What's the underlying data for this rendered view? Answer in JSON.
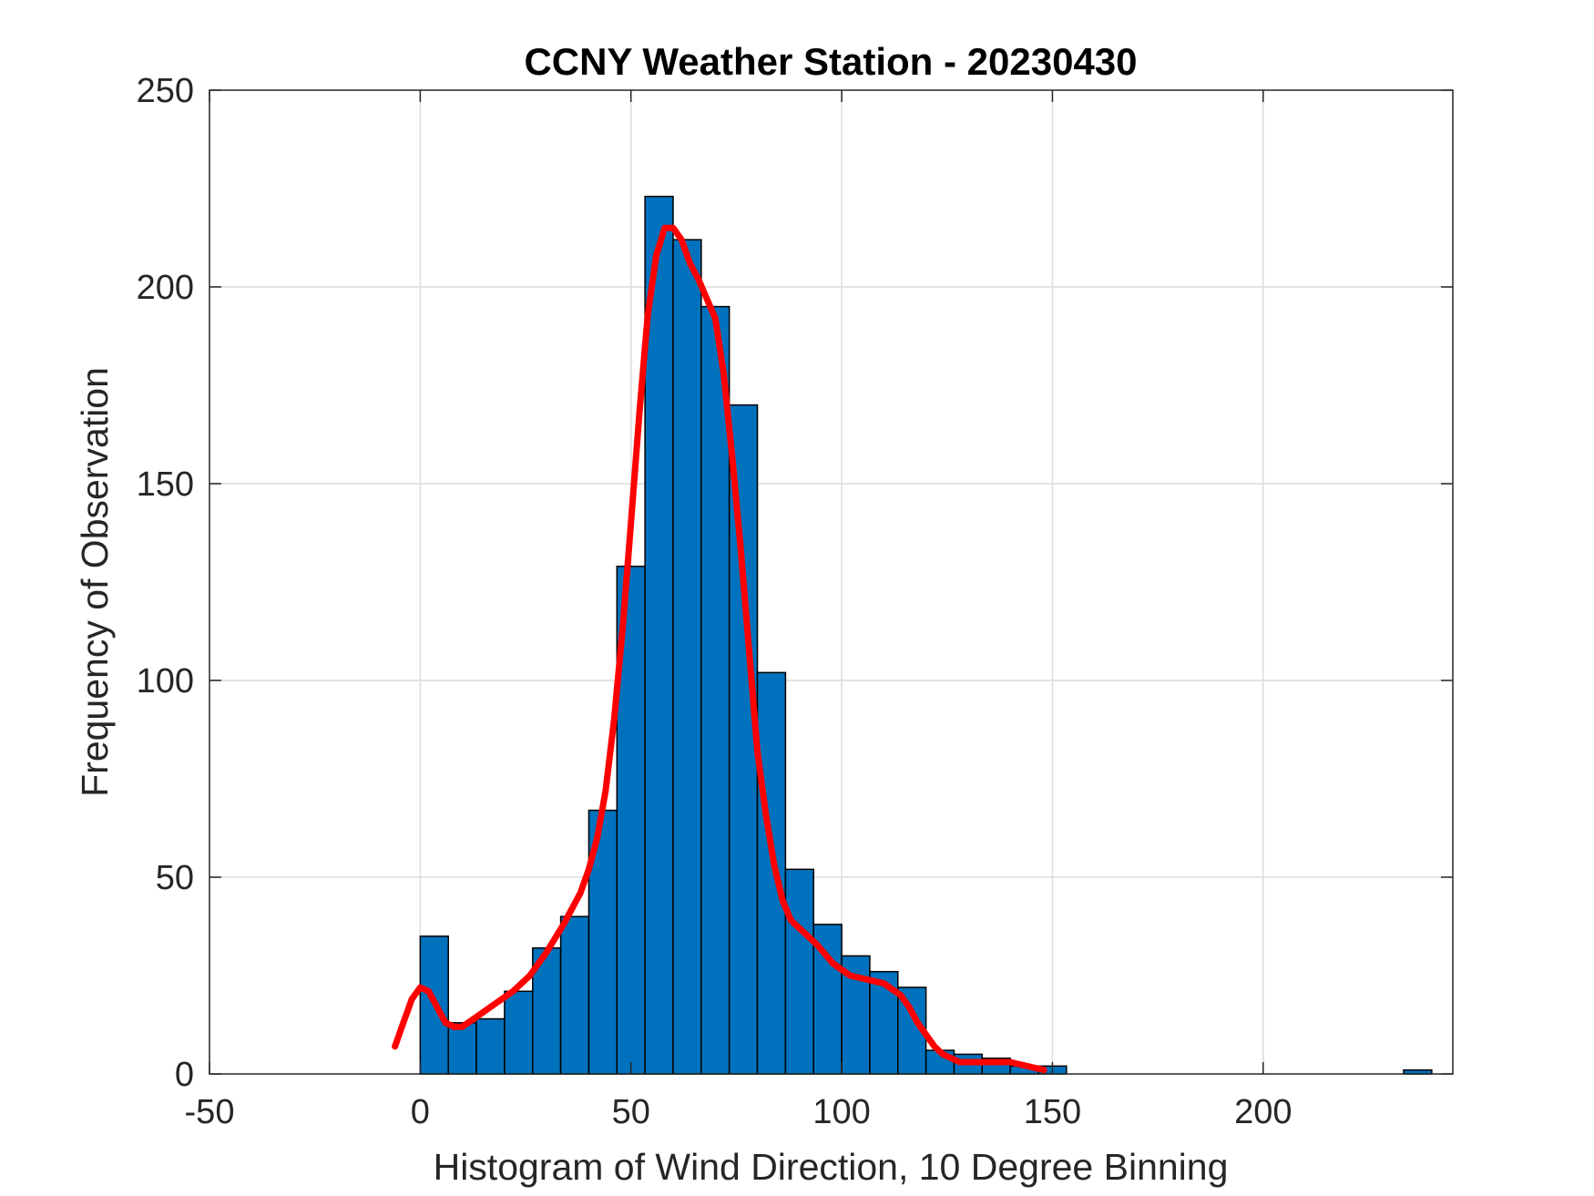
{
  "chart_data": {
    "type": "bar",
    "title": "CCNY Weather Station - 20230430",
    "xlabel": "Histogram of Wind Direction, 10 Degree Binning",
    "ylabel": "Frequency of Observation",
    "xlim": [
      -50,
      245
    ],
    "ylim": [
      0,
      250
    ],
    "xticks": [
      -50,
      0,
      50,
      100,
      150,
      200
    ],
    "yticks": [
      0,
      50,
      100,
      150,
      200,
      250
    ],
    "grid": true,
    "bar_color": "#0072BD",
    "bar_edge_color": "#000000",
    "curve_color": "#FF0000",
    "bins": [
      {
        "x0": 0,
        "x1": 6.67,
        "value": 35
      },
      {
        "x0": 6.67,
        "x1": 13.33,
        "value": 13
      },
      {
        "x0": 13.33,
        "x1": 20,
        "value": 14
      },
      {
        "x0": 20,
        "x1": 26.67,
        "value": 21
      },
      {
        "x0": 26.67,
        "x1": 33.33,
        "value": 32
      },
      {
        "x0": 33.33,
        "x1": 40,
        "value": 40
      },
      {
        "x0": 40,
        "x1": 46.67,
        "value": 67
      },
      {
        "x0": 46.67,
        "x1": 53.33,
        "value": 129
      },
      {
        "x0": 53.33,
        "x1": 60,
        "value": 223
      },
      {
        "x0": 60,
        "x1": 66.67,
        "value": 212
      },
      {
        "x0": 66.67,
        "x1": 73.33,
        "value": 195
      },
      {
        "x0": 73.33,
        "x1": 80,
        "value": 170
      },
      {
        "x0": 80,
        "x1": 86.67,
        "value": 102
      },
      {
        "x0": 86.67,
        "x1": 93.33,
        "value": 52
      },
      {
        "x0": 93.33,
        "x1": 100,
        "value": 38
      },
      {
        "x0": 100,
        "x1": 106.67,
        "value": 30
      },
      {
        "x0": 106.67,
        "x1": 113.33,
        "value": 26
      },
      {
        "x0": 113.33,
        "x1": 120,
        "value": 22
      },
      {
        "x0": 120,
        "x1": 126.67,
        "value": 6
      },
      {
        "x0": 126.67,
        "x1": 133.33,
        "value": 5
      },
      {
        "x0": 133.33,
        "x1": 140,
        "value": 4
      },
      {
        "x0": 140,
        "x1": 146.67,
        "value": 2
      },
      {
        "x0": 146.67,
        "x1": 153.33,
        "value": 2
      },
      {
        "x0": 153.33,
        "x1": 160,
        "value": 0
      },
      {
        "x0": 160,
        "x1": 166.67,
        "value": 0
      },
      {
        "x0": 166.67,
        "x1": 173.33,
        "value": 0
      },
      {
        "x0": 173.33,
        "x1": 180,
        "value": 0
      },
      {
        "x0": 180,
        "x1": 186.67,
        "value": 0
      },
      {
        "x0": 186.67,
        "x1": 193.33,
        "value": 0
      },
      {
        "x0": 193.33,
        "x1": 200,
        "value": 0
      },
      {
        "x0": 200,
        "x1": 206.67,
        "value": 0
      },
      {
        "x0": 206.67,
        "x1": 213.33,
        "value": 0
      },
      {
        "x0": 213.33,
        "x1": 220,
        "value": 0
      },
      {
        "x0": 220,
        "x1": 226.67,
        "value": 0
      },
      {
        "x0": 226.67,
        "x1": 233.33,
        "value": 0
      },
      {
        "x0": 233.33,
        "x1": 240,
        "value": 1
      }
    ],
    "curve": {
      "x": [
        -6,
        -4,
        -2,
        0,
        2,
        4,
        6,
        8,
        10,
        14,
        18,
        22,
        26,
        30,
        34,
        38,
        40,
        42,
        44,
        46,
        48,
        50,
        52,
        54,
        56,
        58,
        60,
        62,
        64,
        66,
        68,
        70,
        72,
        74,
        76,
        78,
        80,
        82,
        84,
        86,
        88,
        90,
        94,
        98,
        102,
        106,
        110,
        114,
        116,
        118,
        120,
        122,
        124,
        128,
        132,
        136,
        140,
        144,
        148
      ],
      "y": [
        7,
        13,
        19,
        22,
        21,
        17,
        13,
        12,
        12,
        15,
        18,
        21,
        25,
        31,
        38,
        46,
        52,
        60,
        72,
        90,
        113,
        140,
        168,
        193,
        208,
        215,
        215,
        212,
        206,
        202,
        197,
        192,
        178,
        157,
        134,
        108,
        82,
        66,
        53,
        44,
        39,
        37,
        33,
        28,
        25,
        24,
        23,
        20,
        17,
        13,
        10,
        7,
        5,
        3,
        3,
        3,
        3,
        2,
        1
      ]
    }
  }
}
